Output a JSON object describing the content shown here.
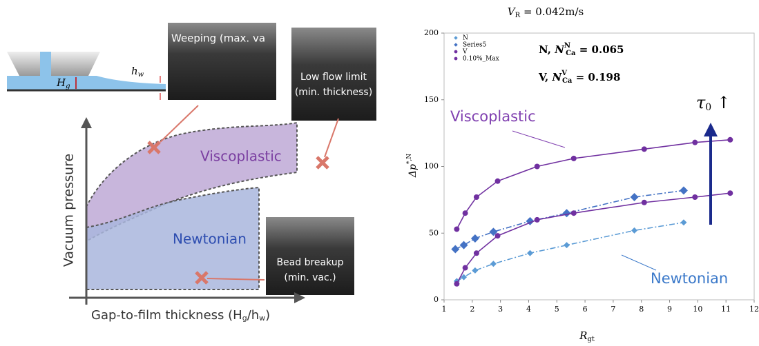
{
  "diagram": {
    "film_labels": {
      "h": "h",
      "h_sub": "w",
      "H": "H",
      "H_sub": "g"
    },
    "photos": [
      {
        "lines": [
          "Weeping (max. va"
        ]
      },
      {
        "lines": [
          "Low flow limit",
          "(min. thickness)"
        ]
      },
      {
        "lines": [
          "Bead breakup",
          "(min. vac.)"
        ]
      }
    ],
    "regions": {
      "viscoplastic": "Viscoplastic",
      "newtonian": "Newtonian"
    },
    "y_axis_label": "Vacuum pressure",
    "x_axis_label": "Gap-to-film thickness (H",
    "x_axis_sub1": "g",
    "x_axis_mid": "/h",
    "x_axis_sub2": "w",
    "x_axis_end": ")"
  },
  "chart_data": {
    "type": "line",
    "title": {
      "symbol": "V",
      "sub": "R",
      "rest": " = 0.042m/s"
    },
    "x_label": {
      "symbol": "R",
      "sub": "gt"
    },
    "y_label": {
      "symbol": "Δp",
      "sup": "*,N"
    },
    "xlim": [
      1,
      12
    ],
    "xticks": [
      1,
      2,
      3,
      4,
      5,
      6,
      7,
      8,
      9,
      10,
      11,
      12
    ],
    "ylim": [
      0,
      200
    ],
    "yticks": [
      0,
      50,
      100,
      150,
      200
    ],
    "legend": "top-left",
    "series": [
      {
        "name": "N",
        "color": "#5b9bd5",
        "marker": "diamond-small",
        "x": [
          1.45,
          1.7,
          2.1,
          2.75,
          4.05,
          5.35,
          7.75,
          9.5
        ],
        "values": [
          14,
          17,
          22,
          27,
          35,
          41,
          52,
          58
        ]
      },
      {
        "name": "Series5",
        "color": "#4472c4",
        "marker": "diamond",
        "x": [
          1.4,
          1.7,
          2.1,
          2.75,
          4.05,
          5.35,
          7.75,
          9.5
        ],
        "values": [
          38,
          41,
          46,
          51,
          59,
          65,
          77,
          82
        ]
      },
      {
        "name": "V",
        "color": "#7030a0",
        "marker": "circle",
        "x": [
          1.45,
          1.75,
          2.15,
          2.9,
          4.3,
          5.6,
          8.1,
          9.9,
          11.15
        ],
        "values": [
          53,
          65,
          77,
          89,
          100,
          106,
          113,
          118,
          120
        ]
      },
      {
        "name": "0.10%_Max",
        "color": "#7030a0",
        "marker": "circle",
        "x": [
          1.45,
          1.75,
          2.15,
          2.9,
          4.3,
          5.6,
          8.1,
          9.9,
          11.15
        ],
        "values": [
          12,
          24,
          35,
          48,
          60,
          65,
          73,
          77,
          80
        ]
      }
    ],
    "annotations": [
      {
        "main": "N, ",
        "sym": "N",
        "sup": "N",
        "sub": "Ca",
        "rest": " = 0.065"
      },
      {
        "main": "V, ",
        "sym": "N",
        "sup": "V",
        "sub": "Ca",
        "rest": " = 0.198"
      },
      {
        "text": "Viscoplastic"
      },
      {
        "text": "Newtonian"
      },
      {
        "sym": "τ",
        "sub": "0",
        "rest": " ↑"
      }
    ]
  }
}
